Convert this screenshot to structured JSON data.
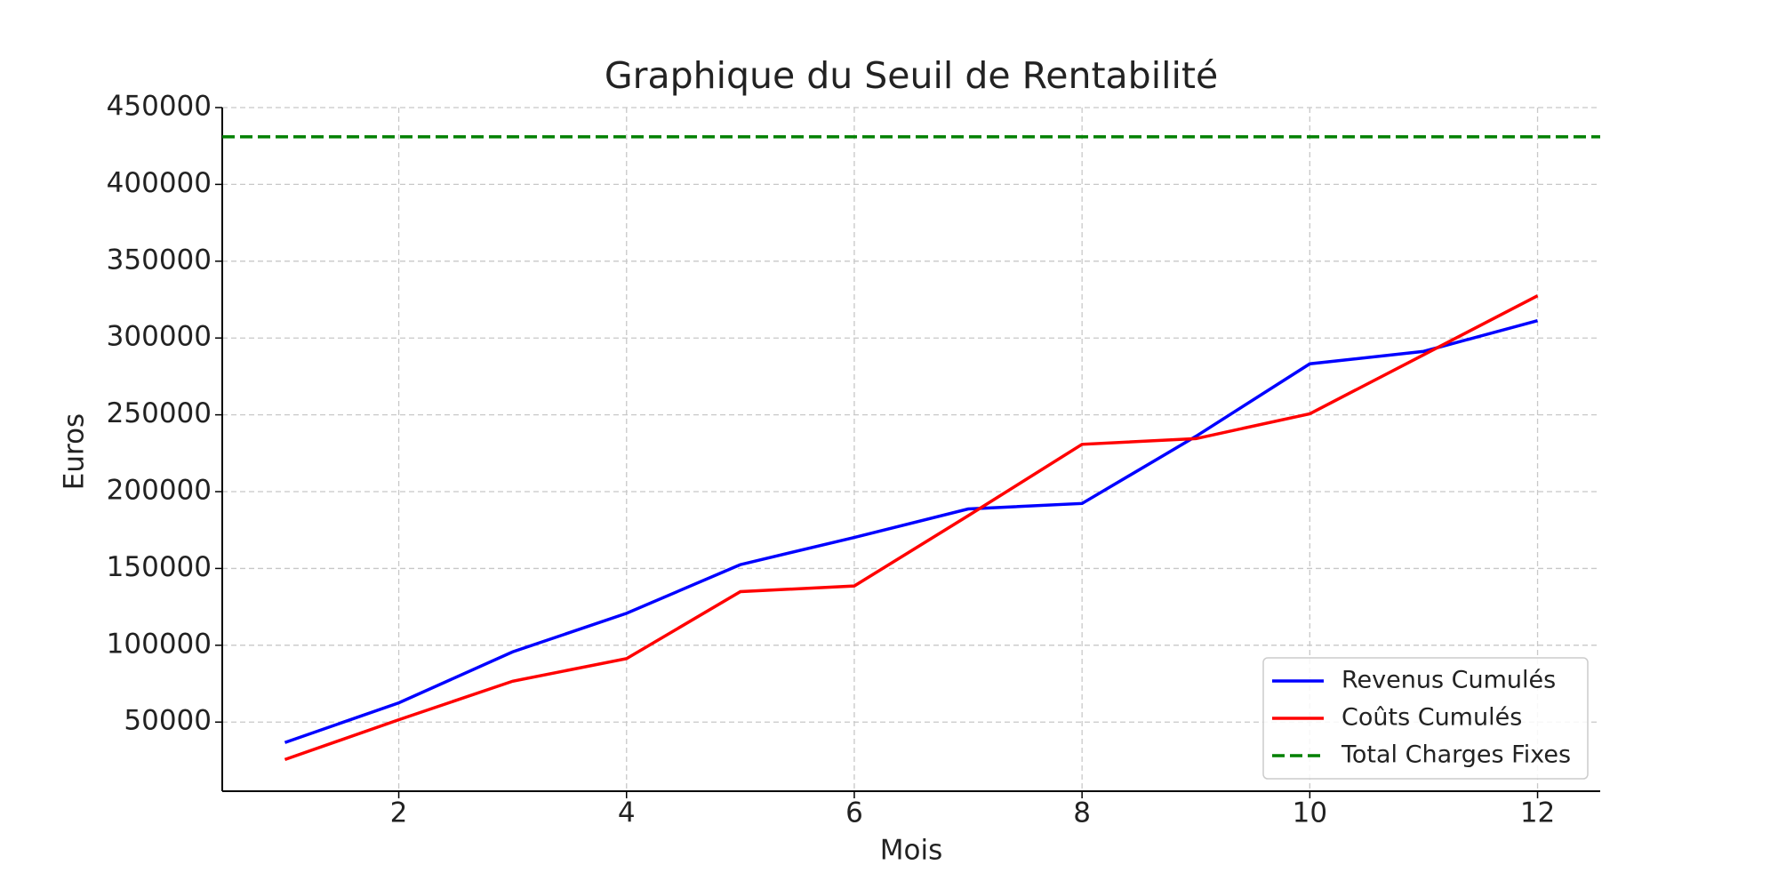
{
  "chart_data": {
    "type": "line",
    "title": "Graphique du Seuil de Rentabilité",
    "xlabel": "Mois",
    "ylabel": "Euros",
    "x": [
      1,
      2,
      3,
      4,
      5,
      6,
      7,
      8,
      9,
      10,
      11,
      12
    ],
    "series": [
      {
        "name": "Revenus Cumulés",
        "color": "#0000ff",
        "values": [
          36700,
          62500,
          95700,
          120800,
          152500,
          170200,
          188700,
          192300,
          236000,
          283200,
          291300,
          311300
        ]
      },
      {
        "name": "Coûts Cumulés",
        "color": "#ff0000",
        "values": [
          25600,
          51500,
          76600,
          91300,
          134900,
          138600,
          184300,
          230800,
          234500,
          250700,
          289100,
          327500
        ]
      }
    ],
    "hline": {
      "name": "Total Charges Fixes",
      "color": "#008000",
      "value": 431000
    },
    "xlim": [
      0.45,
      12.55
    ],
    "ylim": [
      5000,
      450000
    ],
    "xticks": [
      2,
      4,
      6,
      8,
      10,
      12
    ],
    "yticks": [
      50000,
      100000,
      150000,
      200000,
      250000,
      300000,
      350000,
      400000,
      450000
    ],
    "grid": true,
    "legend": "lower right"
  }
}
